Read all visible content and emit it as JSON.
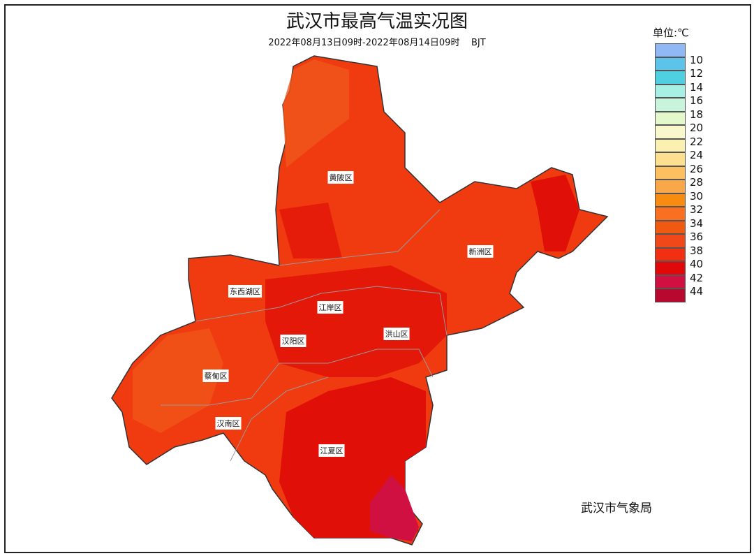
{
  "header": {
    "title": "武汉市最高气温实况图",
    "subtitle": "2022年08月13日09时-2022年08月14日09时    BJT"
  },
  "legend": {
    "unit": "单位:℃",
    "labels": [
      10,
      12,
      14,
      16,
      18,
      20,
      22,
      24,
      26,
      28,
      30,
      32,
      34,
      36,
      38,
      40,
      42,
      44
    ],
    "colors": [
      "#8fb8f4",
      "#5ec3ea",
      "#4fd0e0",
      "#a8f0e4",
      "#c8f4dc",
      "#e4f8cc",
      "#f8f8cc",
      "#fcf0b0",
      "#fce090",
      "#fcc060",
      "#f8a848",
      "#f88c10",
      "#f87020",
      "#f05a10",
      "#f04818",
      "#f03010",
      "#e00808",
      "#d01040",
      "#b80830"
    ]
  },
  "districts": [
    "黄陂区",
    "新洲区",
    "东西湖区",
    "江岸区",
    "汉阳区",
    "洪山区",
    "蔡甸区",
    "汉南区",
    "江夏区"
  ],
  "footer": "武汉市气象局"
}
